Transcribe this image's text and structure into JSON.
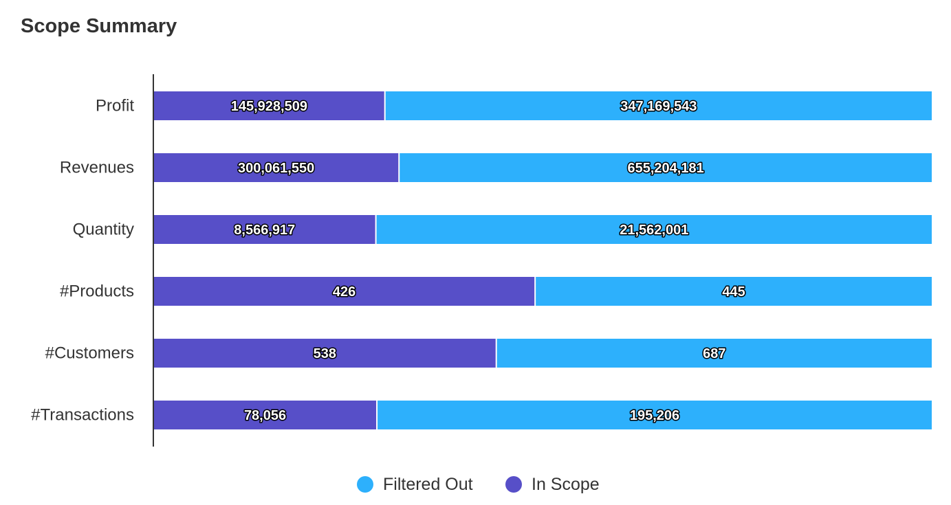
{
  "title": "Scope Summary",
  "chart_data": {
    "type": "bar",
    "orientation": "horizontal",
    "stacked": "normalized",
    "title": "Scope Summary",
    "categories": [
      "Profit",
      "Revenues",
      "Quantity",
      "#Products",
      "#Customers",
      "#Transactions"
    ],
    "series": [
      {
        "name": "In Scope",
        "color": "#574fc8",
        "values": [
          145928509,
          300061550,
          8566917,
          426,
          538,
          78056
        ],
        "labels": [
          "145,928,509",
          "300,061,550",
          "8,566,917",
          "426",
          "538",
          "78,056"
        ]
      },
      {
        "name": "Filtered Out",
        "color": "#2db0fc",
        "values": [
          347169543,
          655204181,
          21562001,
          445,
          687,
          195206
        ],
        "labels": [
          "347,169,543",
          "655,204,181",
          "21,562,001",
          "445",
          "687",
          "195,206"
        ]
      }
    ],
    "legend": {
      "position": "bottom",
      "entries": [
        "Filtered Out",
        "In Scope"
      ]
    },
    "grid": false,
    "xlabel": "",
    "ylabel": ""
  }
}
